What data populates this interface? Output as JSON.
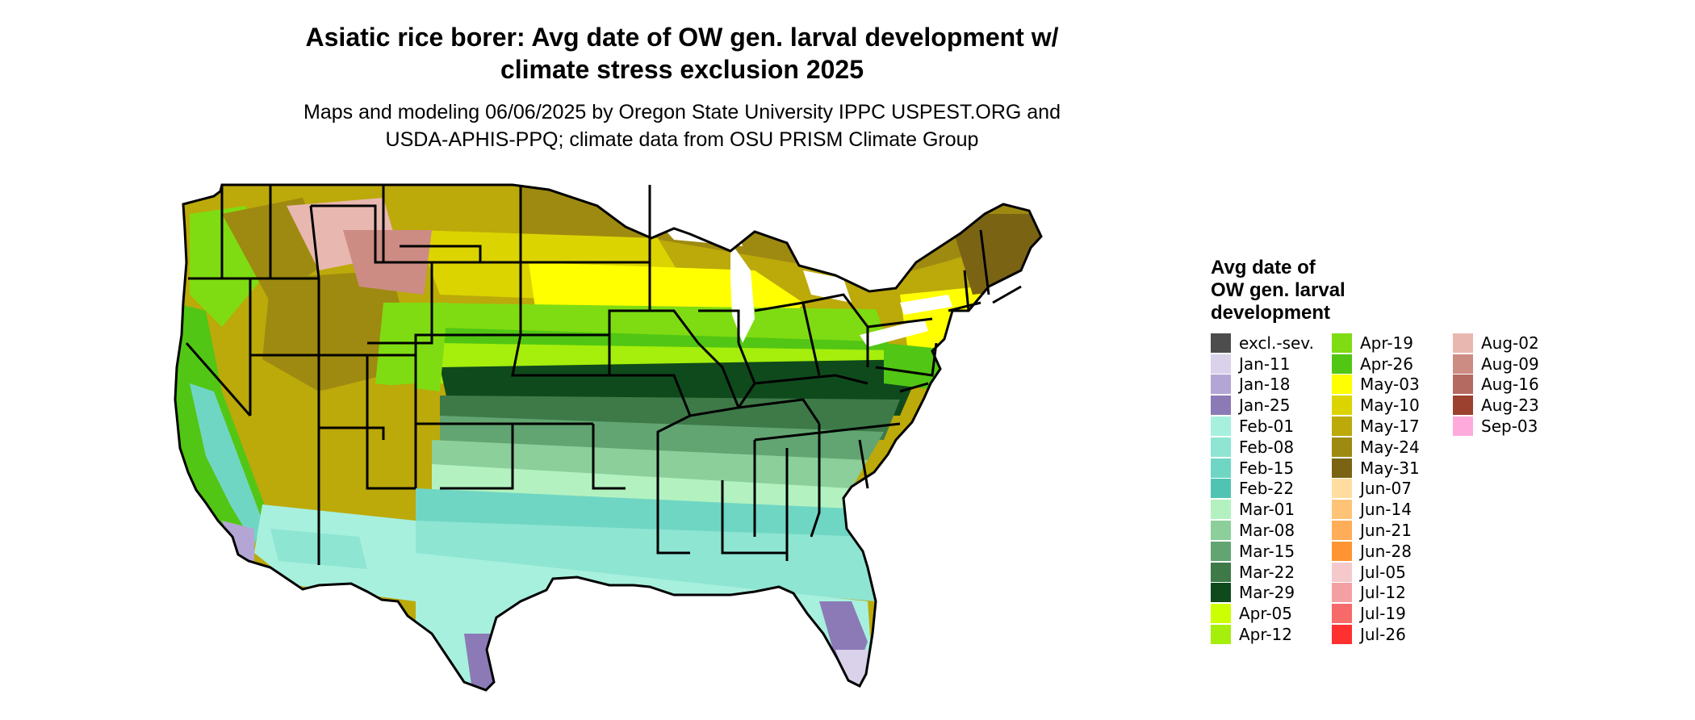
{
  "header": {
    "title_line1": "Asiatic rice borer: Avg date of OW gen. larval development w/",
    "title_line2": "climate stress exclusion 2025",
    "subtitle_line1": "Maps and modeling 06/06/2025 by Oregon State University IPPC USPEST.ORG and",
    "subtitle_line2": "USDA-APHIS-PPQ; climate data from OSU PRISM Climate Group"
  },
  "legend": {
    "title_line1": "Avg date of",
    "title_line2": "OW gen. larval",
    "title_line3": "development",
    "columns": [
      [
        {
          "label": "excl.-sev.",
          "color": "#4d4d4d"
        },
        {
          "label": "Jan-11",
          "color": "#d9d2ea"
        },
        {
          "label": "Jan-18",
          "color": "#b3a6d4"
        },
        {
          "label": "Jan-25",
          "color": "#8c7ab6"
        },
        {
          "label": "Feb-01",
          "color": "#a7f0de"
        },
        {
          "label": "Feb-08",
          "color": "#8ee5d2"
        },
        {
          "label": "Feb-15",
          "color": "#70d6c4"
        },
        {
          "label": "Feb-22",
          "color": "#4fc4b3"
        },
        {
          "label": "Mar-01",
          "color": "#b3f2c0"
        },
        {
          "label": "Mar-08",
          "color": "#8ccf9a"
        },
        {
          "label": "Mar-15",
          "color": "#62a572"
        },
        {
          "label": "Mar-22",
          "color": "#3d7a48"
        },
        {
          "label": "Mar-29",
          "color": "#0f4a1c"
        },
        {
          "label": "Apr-05",
          "color": "#ccff00"
        },
        {
          "label": "Apr-12",
          "color": "#a6ee0c"
        }
      ],
      [
        {
          "label": "Apr-19",
          "color": "#7fdc12"
        },
        {
          "label": "Apr-26",
          "color": "#52c614"
        },
        {
          "label": "May-03",
          "color": "#ffff00"
        },
        {
          "label": "May-10",
          "color": "#dcd400"
        },
        {
          "label": "May-17",
          "color": "#bca90a"
        },
        {
          "label": "May-24",
          "color": "#9e8a10"
        },
        {
          "label": "May-31",
          "color": "#7a6414"
        },
        {
          "label": "Jun-07",
          "color": "#ffdda0"
        },
        {
          "label": "Jun-14",
          "color": "#ffc378"
        },
        {
          "label": "Jun-21",
          "color": "#ffad58"
        },
        {
          "label": "Jun-28",
          "color": "#ff9433"
        },
        {
          "label": "Jul-05",
          "color": "#f5c9cc"
        },
        {
          "label": "Jul-12",
          "color": "#f4a0a3"
        },
        {
          "label": "Jul-19",
          "color": "#f76a6a"
        },
        {
          "label": "Jul-26",
          "color": "#ff3030"
        }
      ],
      [
        {
          "label": "Aug-02",
          "color": "#e8b8b0"
        },
        {
          "label": "Aug-09",
          "color": "#cc8c84"
        },
        {
          "label": "Aug-16",
          "color": "#b46a60"
        },
        {
          "label": "Aug-23",
          "color": "#9c4030"
        },
        {
          "label": "Sep-03",
          "color": "#ffaadd"
        }
      ]
    ]
  }
}
